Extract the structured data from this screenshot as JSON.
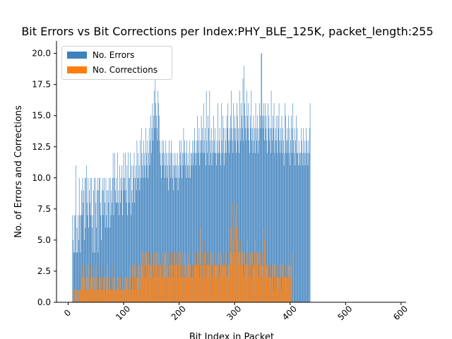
{
  "chart_data": {
    "type": "bar",
    "title": "Bit Errors vs Bit Corrections per Index:PHY_BLE_125K, packet_length:255",
    "xlabel": "Bit Index in Packet",
    "ylabel": "No. of Errors and Corrections",
    "xlim": [
      -21,
      609
    ],
    "ylim": [
      0,
      21
    ],
    "xticks": [
      0,
      100,
      200,
      300,
      400,
      500,
      600
    ],
    "xtick_labels": [
      "0",
      "100",
      "200",
      "300",
      "400",
      "500",
      "600"
    ],
    "yticks": [
      0,
      2.5,
      5,
      7.5,
      10,
      12.5,
      15,
      17.5,
      20
    ],
    "ytick_labels": [
      "0.0",
      "2.5",
      "5.0",
      "7.5",
      "10.0",
      "12.5",
      "15.0",
      "17.5",
      "20.0"
    ],
    "x_start": 8,
    "series": [
      {
        "name": "No. Errors",
        "color": "#3d81bd",
        "values": [
          7,
          5,
          4,
          7,
          4,
          7,
          11,
          4,
          6,
          4,
          7,
          5,
          10,
          7,
          4,
          7,
          9,
          7,
          10,
          8,
          9,
          5,
          10,
          6,
          10,
          11,
          8,
          7,
          10,
          6,
          9,
          8,
          10,
          7,
          10,
          6,
          7,
          4,
          9,
          10,
          4,
          10,
          8,
          6,
          9,
          10,
          4,
          9,
          10,
          10,
          8,
          7,
          5,
          9,
          10,
          7,
          9,
          10,
          8,
          6,
          10,
          7,
          9,
          6,
          9,
          8,
          10,
          6,
          10,
          7,
          9,
          8,
          10,
          12,
          7,
          10,
          12,
          9,
          8,
          10,
          8,
          12,
          8,
          9,
          7,
          11,
          8,
          10,
          9,
          11,
          7,
          10,
          12,
          9,
          10,
          12,
          9,
          8,
          11,
          7,
          12,
          10,
          8,
          10,
          12,
          7,
          11,
          9,
          8,
          11,
          10,
          12,
          8,
          10,
          11,
          9,
          13,
          10,
          12,
          10,
          11,
          9,
          13,
          10,
          14,
          12,
          11,
          10,
          13,
          12,
          11,
          10,
          14,
          12,
          11,
          13,
          10,
          12,
          14,
          11,
          13,
          15,
          12,
          14,
          16,
          13,
          15,
          17,
          14,
          18,
          16,
          15,
          14,
          13,
          17,
          16,
          15,
          13,
          12,
          11,
          10,
          13,
          12,
          11,
          13,
          12,
          10,
          11,
          13,
          12,
          10,
          11,
          12,
          9,
          13,
          11,
          12,
          10,
          13,
          12,
          10,
          11,
          9,
          12,
          11,
          10,
          12,
          11,
          10,
          12,
          9,
          11,
          10,
          13,
          12,
          11,
          13,
          10,
          12,
          11,
          14,
          12,
          13,
          11,
          12,
          10,
          13,
          11,
          12,
          10,
          11,
          13,
          10,
          12,
          11,
          12,
          13,
          11,
          12,
          13,
          14,
          12,
          11,
          13,
          12,
          15,
          13,
          12,
          14,
          11,
          13,
          12,
          15,
          13,
          14,
          12,
          16,
          13,
          12,
          14,
          11,
          17,
          13,
          12,
          15,
          14,
          11,
          17,
          13,
          12,
          14,
          11,
          13,
          12,
          15,
          13,
          12,
          14,
          12,
          11,
          13,
          12,
          16,
          12,
          13,
          14,
          12,
          11,
          16,
          13,
          12,
          15,
          14,
          11,
          12,
          14,
          13,
          12,
          15,
          14,
          16,
          13,
          12,
          14,
          13,
          15,
          17,
          14,
          13,
          12,
          16,
          14,
          15,
          13,
          14,
          12,
          16,
          15,
          13,
          14,
          12,
          17,
          14,
          13,
          16,
          15,
          14,
          18,
          13,
          19,
          16,
          15,
          14,
          13,
          17,
          15,
          14,
          16,
          13,
          12,
          15,
          14,
          17,
          13,
          14,
          12,
          15,
          13,
          14,
          12,
          16,
          14,
          13,
          15,
          12,
          14,
          13,
          16,
          15,
          14,
          20,
          20,
          15,
          14,
          16,
          15,
          13,
          16,
          14,
          15,
          13,
          12,
          16,
          14,
          15,
          13,
          14,
          12,
          17,
          14,
          13,
          15,
          14,
          16,
          12,
          13,
          14,
          15,
          13,
          12,
          15,
          14,
          16,
          13,
          12,
          14,
          13,
          15,
          12,
          14,
          13,
          11,
          12,
          16,
          15,
          13,
          12,
          14,
          13,
          15,
          12,
          14,
          11,
          13,
          15,
          12,
          14,
          16,
          13,
          12,
          14,
          11,
          13,
          15,
          12,
          14,
          12,
          11,
          13,
          12,
          11,
          12,
          14,
          13,
          12,
          11,
          14,
          12,
          13,
          11,
          12,
          14,
          13,
          12,
          11,
          13,
          12,
          14,
          16
        ]
      },
      {
        "name": "No. Corrections",
        "color": "#ff7f0e",
        "values": [
          0,
          1,
          0,
          1,
          0,
          1,
          1,
          1,
          0,
          1,
          1,
          0,
          1,
          2,
          1,
          1,
          2,
          3,
          1,
          2,
          1,
          2,
          3,
          1,
          2,
          1,
          2,
          1,
          3,
          1,
          2,
          1,
          3,
          2,
          1,
          2,
          1,
          3,
          2,
          1,
          2,
          1,
          3,
          2,
          1,
          1,
          2,
          1,
          3,
          2,
          1,
          2,
          1,
          2,
          1,
          3,
          2,
          1,
          2,
          1,
          1,
          2,
          1,
          3,
          2,
          1,
          2,
          1,
          1,
          2,
          1,
          3,
          1,
          2,
          1,
          2,
          1,
          1,
          2,
          1,
          1,
          1,
          2,
          1,
          1,
          1,
          2,
          1,
          2,
          1,
          1,
          1,
          0,
          2,
          1,
          1,
          2,
          1,
          2,
          1,
          1,
          2,
          1,
          3,
          2,
          1,
          2,
          1,
          3,
          2,
          1,
          2,
          3,
          2,
          1,
          2,
          3,
          2,
          1,
          3,
          2,
          3,
          2,
          1,
          3,
          2,
          4,
          3,
          2,
          4,
          3,
          2,
          3,
          4,
          3,
          2,
          3,
          4,
          3,
          4,
          3,
          2,
          4,
          3,
          4,
          2,
          3,
          4,
          3,
          2,
          4,
          3,
          4,
          3,
          2,
          3,
          4,
          3,
          2,
          3,
          4,
          2,
          3,
          4,
          3,
          2,
          4,
          3,
          4,
          2,
          3,
          4,
          3,
          2,
          4,
          3,
          4,
          2,
          3,
          4,
          3,
          4,
          2,
          3,
          4,
          3,
          2,
          3,
          4,
          2,
          3,
          4,
          3,
          2,
          4,
          3,
          2,
          3,
          2,
          4,
          3,
          2,
          3,
          4,
          2,
          3,
          2,
          3,
          4,
          2,
          3,
          2,
          3,
          2,
          3,
          2,
          3,
          2,
          3,
          4,
          3,
          2,
          3,
          4,
          3,
          2,
          3,
          4,
          3,
          2,
          3,
          6,
          4,
          3,
          2,
          4,
          3,
          5,
          4,
          3,
          2,
          3,
          4,
          3,
          4,
          3,
          2,
          3,
          4,
          3,
          4,
          3,
          2,
          3,
          4,
          3,
          4,
          3,
          2,
          3,
          2,
          3,
          4,
          3,
          2,
          3,
          4,
          3,
          4,
          3,
          2,
          3,
          4,
          3,
          4,
          3,
          4,
          3,
          2,
          4,
          3,
          2,
          3,
          4,
          3,
          6,
          5,
          4,
          3,
          8,
          5,
          6,
          4,
          5,
          7,
          6,
          8,
          5,
          6,
          4,
          3,
          4,
          5,
          3,
          4,
          3,
          4,
          3,
          2,
          3,
          4,
          3,
          2,
          3,
          4,
          5,
          4,
          3,
          2,
          3,
          4,
          3,
          2,
          3,
          4,
          3,
          2,
          3,
          4,
          5,
          4,
          3,
          4,
          5,
          4,
          3,
          2,
          3,
          4,
          3,
          4,
          3,
          2,
          3,
          4,
          6,
          5,
          4,
          3,
          2,
          3,
          4,
          3,
          2,
          3,
          2,
          3,
          2,
          1,
          2,
          3,
          2,
          1,
          2,
          3,
          2,
          1,
          2,
          3,
          2,
          1,
          2,
          3,
          2,
          3,
          2,
          1,
          2,
          3,
          2,
          3,
          2,
          3,
          2,
          1,
          2,
          3,
          2,
          3,
          2,
          3,
          2,
          3,
          2,
          3,
          4
        ]
      }
    ],
    "legend": "top-left",
    "grid": false
  }
}
